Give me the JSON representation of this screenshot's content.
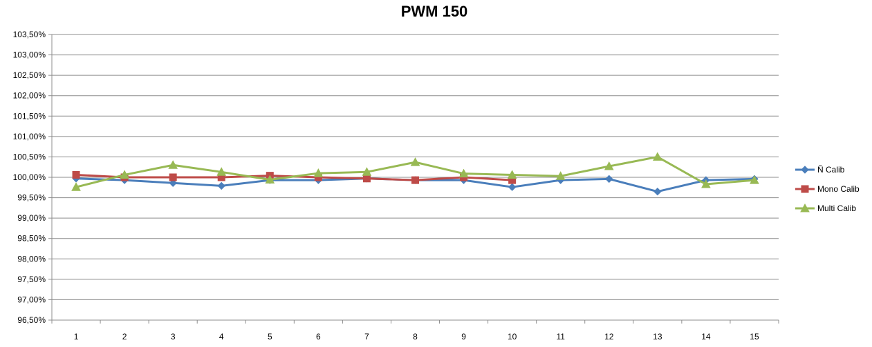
{
  "chart_data": {
    "type": "line",
    "title": "PWM 150",
    "xlabel": "",
    "ylabel": "",
    "categories": [
      "1",
      "2",
      "3",
      "4",
      "5",
      "6",
      "7",
      "8",
      "9",
      "10",
      "11",
      "12",
      "13",
      "14",
      "15"
    ],
    "y_tick_labels": [
      "96,50%",
      "97,00%",
      "97,50%",
      "98,00%",
      "98,50%",
      "99,00%",
      "99,50%",
      "100,00%",
      "100,50%",
      "101,00%",
      "101,50%",
      "102,00%",
      "102,50%",
      "103,00%",
      "103,50%"
    ],
    "ylim": [
      96.5,
      103.5
    ],
    "y_step": 0.5,
    "grid": true,
    "legend_position": "right",
    "series": [
      {
        "name": "Ñ Calib",
        "color": "#4a7ebb",
        "marker": "diamond",
        "values": [
          99.97,
          99.93,
          99.86,
          99.79,
          99.93,
          99.93,
          99.97,
          99.93,
          99.93,
          99.76,
          99.93,
          99.96,
          99.65,
          99.93,
          99.96
        ]
      },
      {
        "name": "Mono Calib",
        "color": "#be4b48",
        "marker": "square",
        "values": [
          100.06,
          100.0,
          100.0,
          100.0,
          100.04,
          100.0,
          99.97,
          99.93,
          100.0,
          99.93,
          null,
          null,
          null,
          null,
          null
        ]
      },
      {
        "name": "Multi Calib",
        "color": "#98b954",
        "marker": "triangle",
        "values": [
          99.76,
          100.06,
          100.3,
          100.13,
          99.94,
          100.1,
          100.13,
          100.37,
          100.09,
          100.06,
          100.03,
          100.27,
          100.5,
          99.83,
          99.93
        ]
      }
    ]
  }
}
